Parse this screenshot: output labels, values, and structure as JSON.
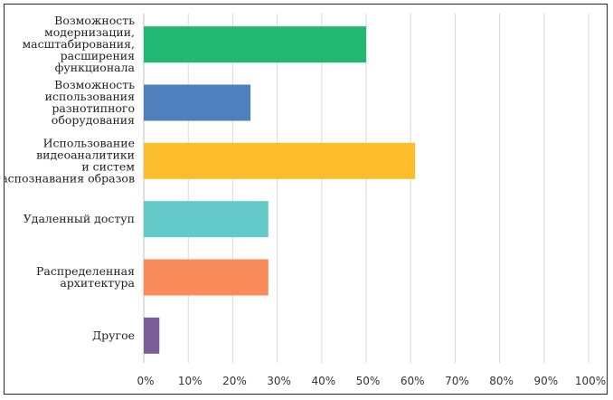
{
  "chart_data": {
    "type": "bar",
    "orientation": "horizontal",
    "title": "",
    "xlabel": "",
    "ylabel": "",
    "xlim": [
      0,
      100
    ],
    "grid": true,
    "legend": "none",
    "categories": [
      [
        "Возможность",
        "модернизации,",
        "масштабирования,",
        "расширения",
        "функционала"
      ],
      [
        "Возможность",
        "использования",
        "разнотипного",
        "оборудования"
      ],
      [
        "Использование",
        "видеоаналитики",
        "и систем",
        "распознавания образов"
      ],
      [
        "Удаленный доступ"
      ],
      [
        "Распределенная",
        "архитектура"
      ],
      [
        "Другое"
      ]
    ],
    "values": [
      50,
      24,
      61,
      28,
      28,
      3.5
    ],
    "colors": [
      "#20b873",
      "#4f80bd",
      "#fbbd2c",
      "#63c9c9",
      "#f98b5b",
      "#7b5e97"
    ],
    "ticks": [
      "0%",
      "10%",
      "20%",
      "30%",
      "40%",
      "50%",
      "60%",
      "70%",
      "80%",
      "90%",
      "100%"
    ]
  }
}
